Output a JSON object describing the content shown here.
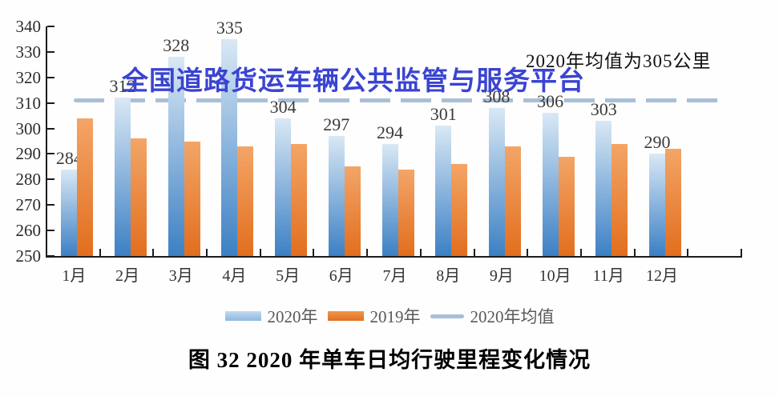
{
  "figure": {
    "watermark": "全国道路货运车辆公共监管与服务平台",
    "annotation": "2020年均值为305公里",
    "caption": "图 32 2020 年单车日均行驶里程变化情况"
  },
  "legend": {
    "items": [
      {
        "label": "2020年",
        "swatch": "bar-blue"
      },
      {
        "label": "2019年",
        "swatch": "bar-orange"
      },
      {
        "label": "2020年均值",
        "swatch": "line"
      }
    ]
  },
  "chart_data": {
    "type": "bar",
    "title": "图 32 2020 年单车日均行驶里程变化情况",
    "categories": [
      "1月",
      "2月",
      "3月",
      "4月",
      "5月",
      "6月",
      "7月",
      "8月",
      "9月",
      "10月",
      "11月",
      "12月"
    ],
    "series": [
      {
        "name": "2020年",
        "values": [
          284,
          312,
          328,
          335,
          304,
          297,
          294,
          301,
          308,
          306,
          303,
          290
        ],
        "show_labels": true,
        "color_top": "#d9e8f5",
        "color_bottom": "#3c80c4"
      },
      {
        "name": "2019年",
        "values": [
          304,
          296,
          295,
          293,
          294,
          285,
          284,
          286,
          293,
          289,
          294,
          292
        ],
        "show_labels": false,
        "color_top": "#f3a567",
        "color_bottom": "#e26e1e"
      }
    ],
    "mean_line": {
      "label": "2020年均值",
      "value": 305,
      "display_position": 311,
      "color": "#a9bed8"
    },
    "ylim": [
      250,
      340
    ],
    "yticks": [
      250,
      260,
      270,
      280,
      290,
      300,
      310,
      320,
      330,
      340
    ],
    "xlabel": "",
    "ylabel": "",
    "grid": false,
    "legend_position": "bottom",
    "extra_right_slots": 1
  }
}
